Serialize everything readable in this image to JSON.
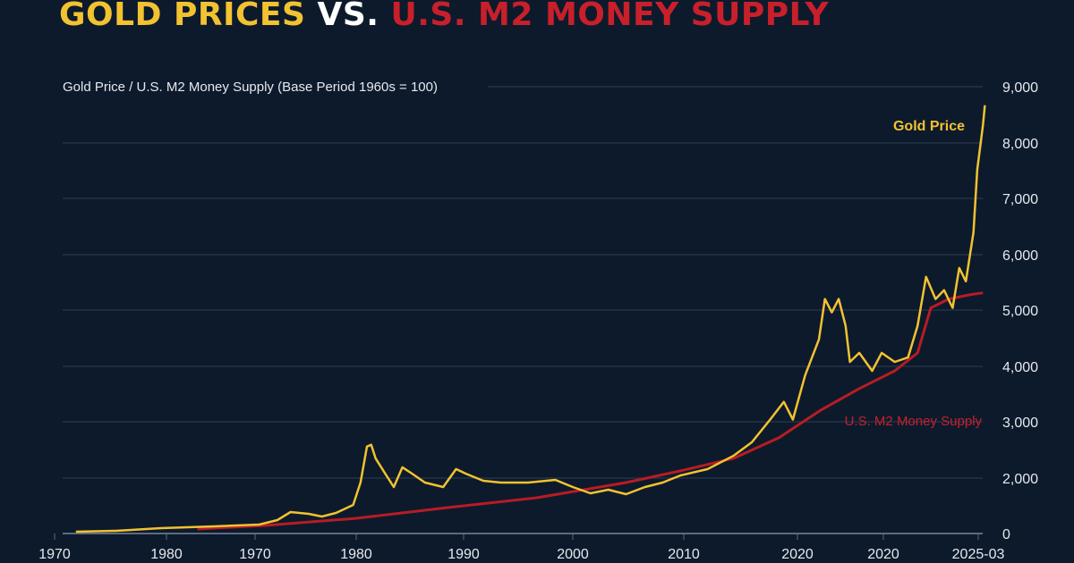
{
  "title": {
    "part1": "GOLD PRICES",
    "part2": "VS.",
    "part3": "U.S. M2 MONEY SUPPLY"
  },
  "colors": {
    "background": "#0d1a2c",
    "gold": "#f2c230",
    "m2": "#b81c24",
    "grid": "#3a4a63",
    "text": "#e6e9ee"
  },
  "chart_data": {
    "type": "line",
    "title": "GOLD PRICES VS. U.S. M2 MONEY SUPPLY",
    "ylabel": "Gold Price / U.S. M2 Money Supply (Base Period 1960s = 100)",
    "x_tick_labels": [
      "1970",
      "1980",
      "1970",
      "1980",
      "1990",
      "2000",
      "2010",
      "2020",
      "2020",
      "2025-03"
    ],
    "y_ticks": [
      0,
      2000,
      3000,
      4000,
      5000,
      6000,
      7000,
      8000,
      9000
    ],
    "y_tick_labels": [
      "0",
      "2,000",
      "3,000",
      "4,000",
      "5,000",
      "6,000",
      "7,000",
      "8,000",
      "9,000"
    ],
    "ylim": [
      0,
      9000
    ],
    "grid": "horizontal",
    "x_units": "tick index position along the axis (0 = first label)",
    "series": [
      {
        "name": "Gold Price",
        "color": "#f2c230",
        "points": [
          [
            0.19,
            65
          ],
          [
            0.55,
            97
          ],
          [
            0.95,
            194
          ],
          [
            1.54,
            258
          ],
          [
            2.04,
            323
          ],
          [
            2.22,
            484
          ],
          [
            2.35,
            774
          ],
          [
            2.53,
            710
          ],
          [
            2.66,
            613
          ],
          [
            2.8,
            742
          ],
          [
            2.97,
            1032
          ],
          [
            3.04,
            1839
          ],
          [
            3.1,
            2560
          ],
          [
            3.14,
            2592
          ],
          [
            3.18,
            2352
          ],
          [
            3.27,
            2080
          ],
          [
            3.35,
            1677
          ],
          [
            3.43,
            2192
          ],
          [
            3.52,
            2080
          ],
          [
            3.64,
            1839
          ],
          [
            3.81,
            1677
          ],
          [
            3.93,
            2160
          ],
          [
            4.02,
            2080
          ],
          [
            4.18,
            1903
          ],
          [
            4.34,
            1839
          ],
          [
            4.59,
            1839
          ],
          [
            4.84,
            1935
          ],
          [
            5.0,
            1677
          ],
          [
            5.16,
            1452
          ],
          [
            5.32,
            1581
          ],
          [
            5.48,
            1419
          ],
          [
            5.65,
            1677
          ],
          [
            5.81,
            1839
          ],
          [
            5.97,
            2048
          ],
          [
            6.21,
            2160
          ],
          [
            6.44,
            2400
          ],
          [
            6.6,
            2640
          ],
          [
            6.76,
            3040
          ],
          [
            6.88,
            3360
          ],
          [
            6.96,
            3040
          ],
          [
            7.09,
            3840
          ],
          [
            7.25,
            4480
          ],
          [
            7.32,
            5200
          ],
          [
            7.4,
            4960
          ],
          [
            7.48,
            5200
          ],
          [
            7.56,
            4720
          ],
          [
            7.61,
            4080
          ],
          [
            7.72,
            4240
          ],
          [
            7.87,
            3920
          ],
          [
            7.98,
            4240
          ],
          [
            8.12,
            4080
          ],
          [
            8.26,
            4160
          ],
          [
            8.36,
            4720
          ],
          [
            8.45,
            5600
          ],
          [
            8.55,
            5200
          ],
          [
            8.64,
            5360
          ],
          [
            8.73,
            5040
          ],
          [
            8.8,
            5760
          ],
          [
            8.87,
            5520
          ],
          [
            8.95,
            6400
          ],
          [
            8.99,
            7520
          ],
          [
            9.05,
            8320
          ],
          [
            9.07,
            8672
          ]
        ]
      },
      {
        "name": "U.S. M2 Money Supply",
        "color": "#b81c24",
        "points": [
          [
            1.35,
            160
          ],
          [
            2.1,
            290
          ],
          [
            3.0,
            548
          ],
          [
            3.85,
            935
          ],
          [
            4.67,
            1290
          ],
          [
            5.48,
            1839
          ],
          [
            5.97,
            2128
          ],
          [
            6.44,
            2352
          ],
          [
            6.84,
            2720
          ],
          [
            7.26,
            3200
          ],
          [
            7.72,
            3600
          ],
          [
            8.12,
            3920
          ],
          [
            8.36,
            4240
          ],
          [
            8.5,
            5040
          ],
          [
            8.69,
            5200
          ],
          [
            8.92,
            5280
          ],
          [
            9.05,
            5312
          ]
        ]
      }
    ]
  }
}
